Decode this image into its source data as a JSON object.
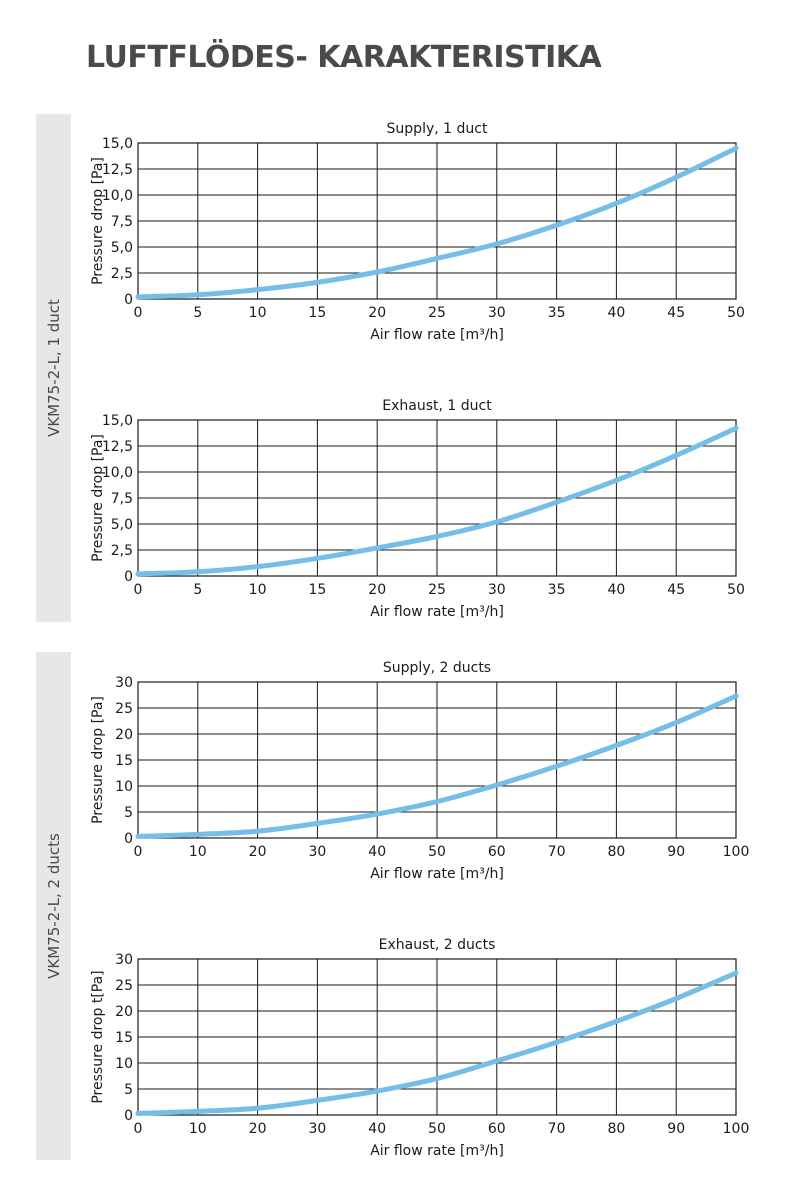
{
  "page": {
    "title": "LUFTFLÖDES- KARAKTERISTIKA"
  },
  "groups": [
    {
      "label": "VKM75-2-L, 1 duct"
    },
    {
      "label": "VKM75-2-L, 2 ducts"
    }
  ],
  "colors": {
    "curve": "#76bde8",
    "grid": "#1a1a1a",
    "band": "#e7e7e7"
  },
  "chart_data": [
    {
      "type": "line",
      "title": "Supply, 1 duct",
      "xlabel": "Air flow rate [m³/h]",
      "ylabel": "Pressure drop [Pa]",
      "xlim": [
        0,
        50
      ],
      "ylim": [
        0,
        15
      ],
      "x_ticks": [
        0,
        5,
        10,
        15,
        20,
        25,
        30,
        35,
        40,
        45,
        50
      ],
      "x_tick_labels": [
        "0",
        "5",
        "10",
        "15",
        "20",
        "25",
        "30",
        "35",
        "40",
        "45",
        "50"
      ],
      "y_ticks": [
        0,
        2.5,
        5,
        7.5,
        10,
        12.5,
        15
      ],
      "y_tick_labels": [
        "0",
        "2,5",
        "5,0",
        "7,5",
        "10,0",
        "12,5",
        "15,0"
      ],
      "grid": true,
      "series": [
        {
          "x": [
            0,
            5,
            10,
            15,
            20,
            25,
            30,
            35,
            40,
            45,
            50
          ],
          "y": [
            0.2,
            0.4,
            0.9,
            1.6,
            2.6,
            3.9,
            5.3,
            7.1,
            9.2,
            11.7,
            14.5
          ]
        }
      ]
    },
    {
      "type": "line",
      "title": "Exhaust, 1 duct",
      "xlabel": "Air flow rate [m³/h]",
      "ylabel": "Pressure drop [Pa]",
      "xlim": [
        0,
        50
      ],
      "ylim": [
        0,
        15
      ],
      "x_ticks": [
        0,
        5,
        10,
        15,
        20,
        25,
        30,
        35,
        40,
        45,
        50
      ],
      "x_tick_labels": [
        "0",
        "5",
        "10",
        "15",
        "20",
        "25",
        "30",
        "35",
        "40",
        "45",
        "50"
      ],
      "y_ticks": [
        0,
        2.5,
        5,
        7.5,
        10,
        12.5,
        15
      ],
      "y_tick_labels": [
        "0",
        "2,5",
        "5,0",
        "7,5",
        "10,0",
        "12,5",
        "15,0"
      ],
      "grid": true,
      "series": [
        {
          "x": [
            0,
            5,
            10,
            15,
            20,
            25,
            30,
            35,
            40,
            45,
            50
          ],
          "y": [
            0.2,
            0.4,
            0.9,
            1.7,
            2.7,
            3.8,
            5.2,
            7.1,
            9.2,
            11.6,
            14.2
          ]
        }
      ]
    },
    {
      "type": "line",
      "title": "Supply, 2 ducts",
      "xlabel": "Air flow rate [m³/h]",
      "ylabel": "Pressure drop [Pa]",
      "xlim": [
        0,
        100
      ],
      "ylim": [
        0,
        30
      ],
      "x_ticks": [
        0,
        10,
        20,
        30,
        40,
        50,
        60,
        70,
        80,
        90,
        100
      ],
      "x_tick_labels": [
        "0",
        "10",
        "20",
        "30",
        "40",
        "50",
        "60",
        "70",
        "80",
        "90",
        "100"
      ],
      "y_ticks": [
        0,
        5,
        10,
        15,
        20,
        25,
        30
      ],
      "y_tick_labels": [
        "0",
        "5",
        "10",
        "15",
        "20",
        "25",
        "30"
      ],
      "grid": true,
      "series": [
        {
          "x": [
            0,
            10,
            20,
            30,
            40,
            50,
            60,
            70,
            80,
            90,
            100
          ],
          "y": [
            0.3,
            0.7,
            1.3,
            2.8,
            4.6,
            7.0,
            10.2,
            13.8,
            17.8,
            22.2,
            27.3
          ]
        }
      ]
    },
    {
      "type": "line",
      "title": "Exhaust, 2 ducts",
      "xlabel": "Air flow rate [m³/h]",
      "ylabel": "Pressure drop t[Pa]",
      "xlim": [
        0,
        100
      ],
      "ylim": [
        0,
        30
      ],
      "x_ticks": [
        0,
        10,
        20,
        30,
        40,
        50,
        60,
        70,
        80,
        90,
        100
      ],
      "x_tick_labels": [
        "0",
        "10",
        "20",
        "30",
        "40",
        "50",
        "60",
        "70",
        "80",
        "90",
        "100"
      ],
      "y_ticks": [
        0,
        5,
        10,
        15,
        20,
        25,
        30
      ],
      "y_tick_labels": [
        "0",
        "5",
        "10",
        "15",
        "20",
        "25",
        "30"
      ],
      "grid": true,
      "series": [
        {
          "x": [
            0,
            10,
            20,
            30,
            40,
            50,
            60,
            70,
            80,
            90,
            100
          ],
          "y": [
            0.3,
            0.7,
            1.3,
            2.8,
            4.6,
            7.0,
            10.4,
            14.0,
            18.0,
            22.4,
            27.3
          ]
        }
      ]
    }
  ]
}
